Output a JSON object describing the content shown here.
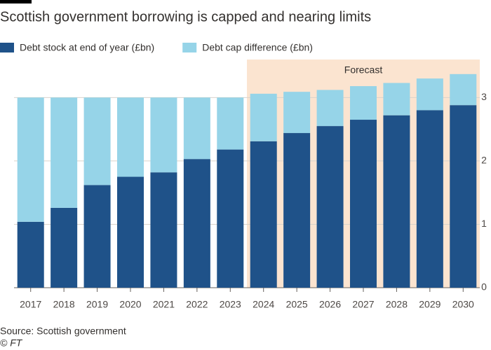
{
  "chart_data": {
    "type": "stacked-bar",
    "title": "Scottish government borrowing is capped and nearing limits",
    "categories": [
      "2017",
      "2018",
      "2019",
      "2020",
      "2021",
      "2022",
      "2023",
      "2024",
      "2025",
      "2026",
      "2027",
      "2028",
      "2029",
      "2030"
    ],
    "series": [
      {
        "name": "Debt stock at end of year (£bn)",
        "color": "#1f5289",
        "values": [
          1.04,
          1.26,
          1.62,
          1.75,
          1.82,
          2.03,
          2.18,
          2.31,
          2.44,
          2.55,
          2.65,
          2.72,
          2.8,
          2.88
        ]
      },
      {
        "name": "Debt cap difference (£bn)",
        "color": "#96d4e8",
        "values": [
          1.96,
          1.74,
          1.38,
          1.25,
          1.18,
          0.97,
          0.82,
          0.75,
          0.65,
          0.57,
          0.53,
          0.51,
          0.5,
          0.49
        ]
      }
    ],
    "ylim": [
      0,
      3.6
    ],
    "yticks": [
      0,
      1,
      2,
      3
    ],
    "y_axis_side": "right",
    "grid": true,
    "shaded_region": {
      "label": "Forecast",
      "from": "2024",
      "to": "2030",
      "color": "#fbe4d0"
    },
    "source": "Source: Scottish government",
    "credit": "© FT"
  }
}
